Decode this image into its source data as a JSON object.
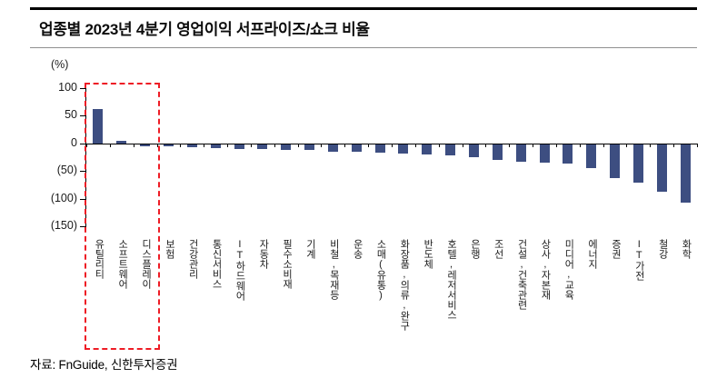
{
  "header": {
    "title": "업종별 2023년 4분기 영업이익 서프라이즈/쇼크 비율"
  },
  "chart_data": {
    "type": "bar",
    "title": "업종별 2023년 4분기 영업이익 서프라이즈/쇼크 비율",
    "xlabel": "",
    "ylabel": "(%)",
    "ylim": [
      -150,
      100
    ],
    "grid": false,
    "legend": false,
    "bar_color": "#3d4e81",
    "yticks": [
      {
        "value": 100,
        "label": "100"
      },
      {
        "value": 50,
        "label": "50"
      },
      {
        "value": 0,
        "label": "0"
      },
      {
        "value": -50,
        "label": "(50)"
      },
      {
        "value": -100,
        "label": "(100)"
      },
      {
        "value": -150,
        "label": "(150)"
      }
    ],
    "categories": [
      "유틸리티",
      "소프트웨어",
      "디스플레이",
      "보험",
      "건강관리",
      "통신서비스",
      "IT하드웨어",
      "자동차",
      "필수소비재",
      "기계",
      "비철,목재등",
      "운송",
      "소매(유통)",
      "화장품,의류,완구",
      "반도체",
      "호텔,레저서비스",
      "은행",
      "조선",
      "건설,건축관련",
      "상사,자본재",
      "미디어,교육",
      "에너지",
      "증권",
      "IT가전",
      "철강",
      "화학"
    ],
    "values": [
      62,
      5,
      -4,
      -4,
      -6,
      -7,
      -8,
      -9,
      -10,
      -11,
      -13,
      -14,
      -15,
      -17,
      -18,
      -20,
      -23,
      -28,
      -32,
      -34,
      -35,
      -43,
      -62,
      -70,
      -86,
      -106
    ],
    "highlight": {
      "indices": [
        0,
        1,
        2
      ],
      "style": "red-dashed-box",
      "color": "#ee1c25"
    }
  },
  "footer": {
    "source": "자료: FnGuide, 신한투자증권"
  }
}
